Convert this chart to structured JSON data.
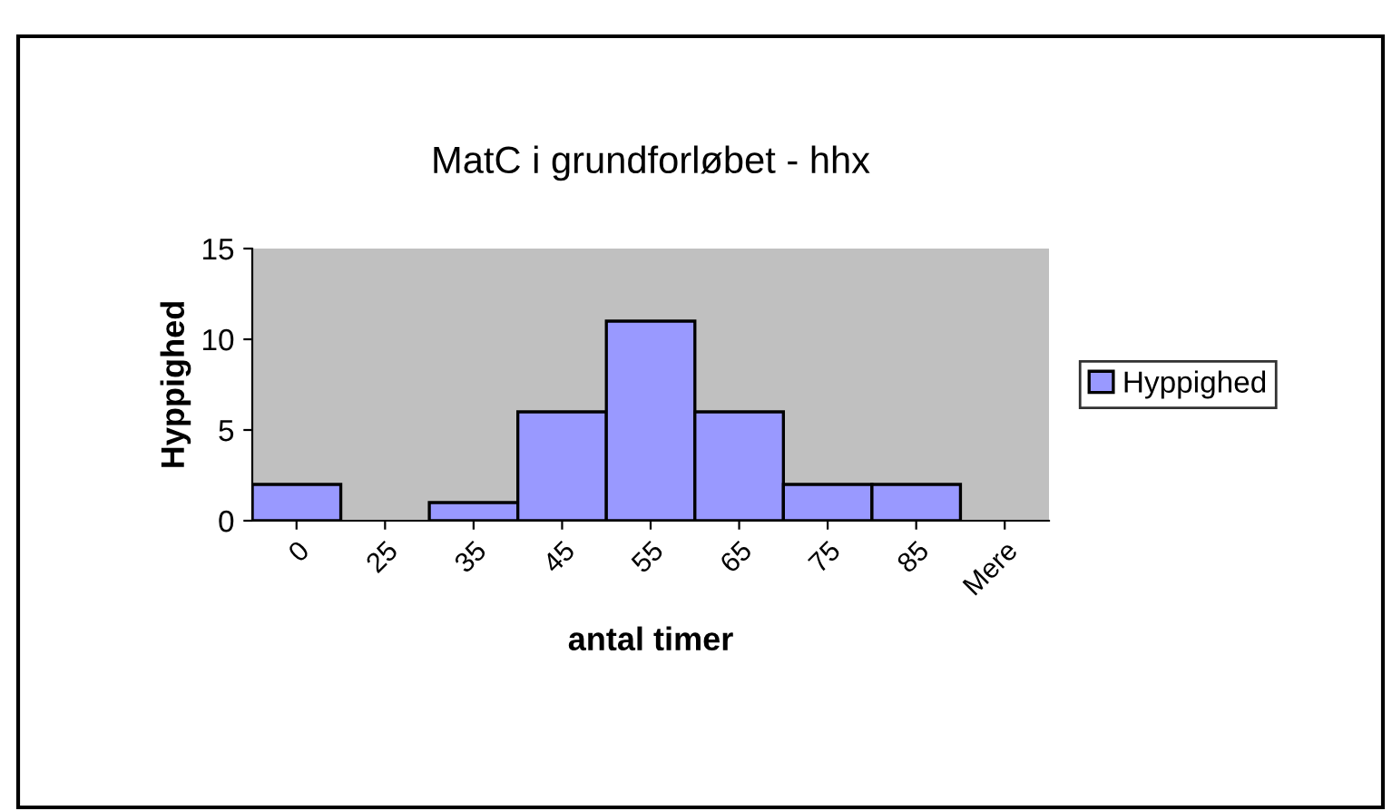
{
  "chart_data": {
    "type": "bar",
    "title": "MatC i grundforløbet - hhx",
    "xlabel": "antal timer",
    "ylabel": "Hyppighed",
    "categories": [
      "0",
      "25",
      "35",
      "45",
      "55",
      "65",
      "75",
      "85",
      "Mere"
    ],
    "series": [
      {
        "name": "Hyppighed",
        "color": "#9999ff",
        "values": [
          2,
          0,
          1,
          6,
          11,
          6,
          2,
          2,
          0
        ]
      }
    ],
    "ylim": [
      0,
      15
    ],
    "yticks": [
      0,
      5,
      10,
      15
    ],
    "grid": false,
    "legend": "right"
  }
}
